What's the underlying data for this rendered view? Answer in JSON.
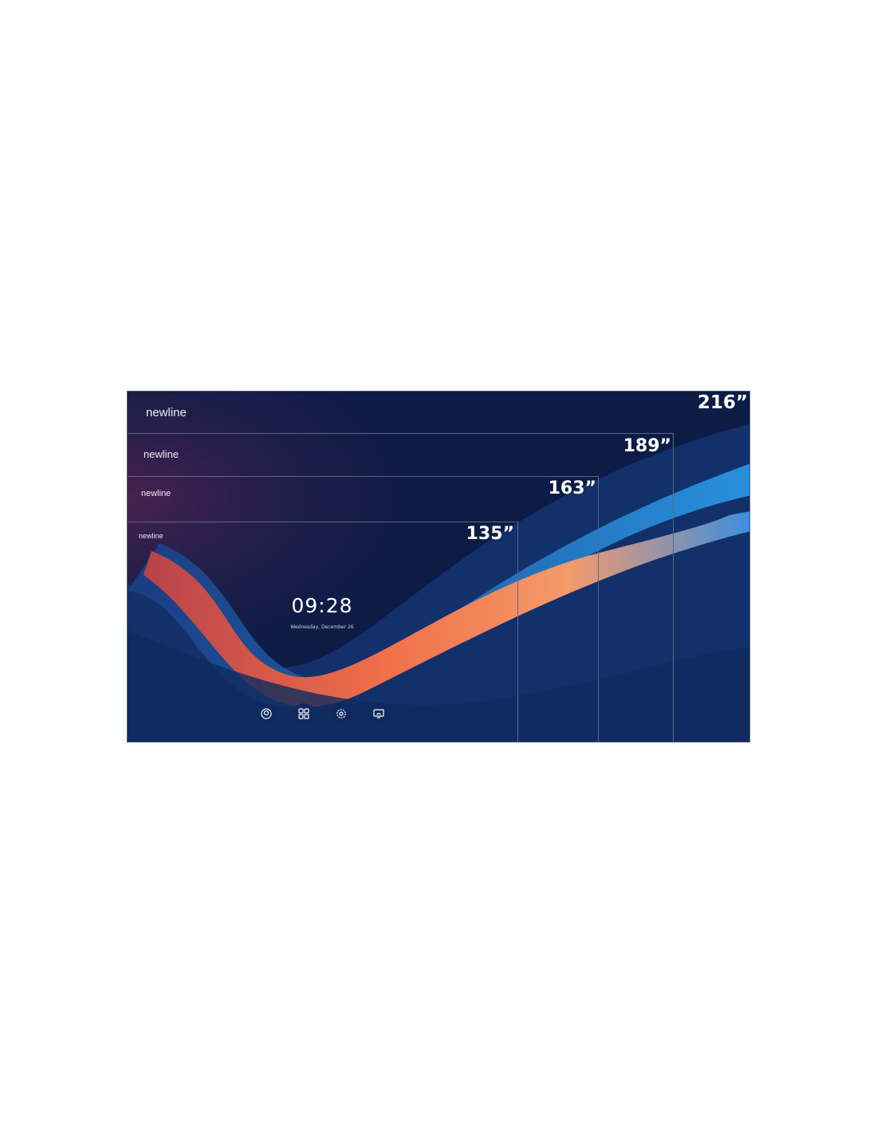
{
  "panels": [
    {
      "brand": "newline",
      "size": "216”"
    },
    {
      "brand": "newline",
      "size": "189”"
    },
    {
      "brand": "newline",
      "size": "163”"
    },
    {
      "brand": "newline",
      "size": "135”"
    }
  ],
  "home_screen": {
    "time": "09:28",
    "date": "Wednesday, December 26"
  },
  "dock": [
    "whiteboard-icon",
    "apps-grid-icon",
    "settings-gear-icon",
    "screen-share-icon"
  ],
  "colors": {
    "background": "#0c1c45",
    "wave_orange": "#f07a4a",
    "wave_blue": "#1f7fd0"
  }
}
